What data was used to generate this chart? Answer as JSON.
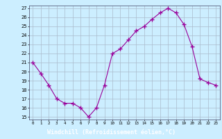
{
  "x": [
    0,
    1,
    2,
    3,
    4,
    5,
    6,
    7,
    8,
    9,
    10,
    11,
    12,
    13,
    14,
    15,
    16,
    17,
    18,
    19,
    20,
    21,
    22,
    23
  ],
  "y": [
    21.0,
    19.8,
    18.5,
    17.0,
    16.5,
    16.5,
    16.0,
    15.0,
    16.0,
    18.5,
    22.0,
    22.5,
    23.5,
    24.5,
    25.0,
    25.8,
    26.5,
    27.0,
    26.5,
    25.2,
    22.8,
    19.2,
    18.8,
    18.5
  ],
  "line_color": "#990099",
  "marker": "+",
  "marker_size": 4,
  "bg_color": "#cceeff",
  "grid_color": "#aabbcc",
  "xlabel": "Windchill (Refroidissement éolien,°C)",
  "xlabel_bg": "#8800aa",
  "xlabel_color": "#ffffff",
  "ylim_min": 15,
  "ylim_max": 27,
  "yticks": [
    15,
    16,
    17,
    18,
    19,
    20,
    21,
    22,
    23,
    24,
    25,
    26,
    27
  ],
  "xticks": [
    0,
    1,
    2,
    3,
    4,
    5,
    6,
    7,
    8,
    9,
    10,
    11,
    12,
    13,
    14,
    15,
    16,
    17,
    18,
    19,
    20,
    21,
    22,
    23
  ]
}
